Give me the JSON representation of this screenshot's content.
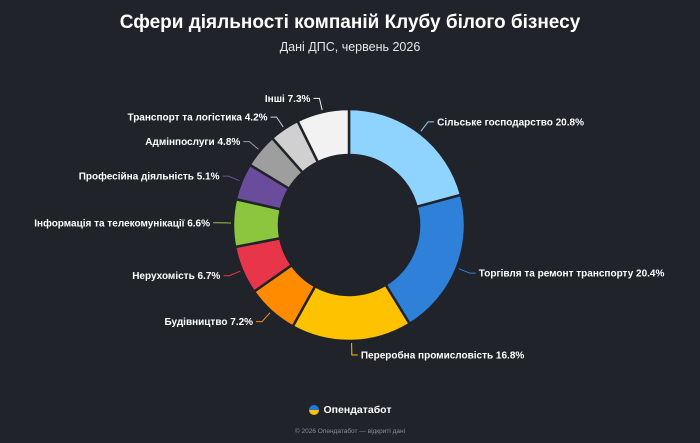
{
  "header": {
    "title": "Сфери діяльності компаній Клубу білого бізнесу",
    "subtitle": "Дані ДПС, червень 2026"
  },
  "chart_data": {
    "type": "pie",
    "variant": "donut",
    "title": "Сфери діяльності компаній Клубу білого бізнесу",
    "subtitle": "Дані ДПС, червень 2026",
    "legend": "none (outside labels with leader lines)",
    "slices": [
      {
        "label": "Сільське господарство 20.8%",
        "value": 20.8,
        "color": "#8fd3ff"
      },
      {
        "label": "Торгівля та ремонт транспорту 20.4%",
        "value": 20.4,
        "color": "#2f80d9"
      },
      {
        "label": "Переробна промисловість 16.8%",
        "value": 16.8,
        "color": "#ffc200"
      },
      {
        "label": "Будівництво 7.2%",
        "value": 7.2,
        "color": "#ff8c00"
      },
      {
        "label": "Нерухомість 6.7%",
        "value": 6.7,
        "color": "#e8354a"
      },
      {
        "label": "Інформація та телекомунікації 6.6%",
        "value": 6.6,
        "color": "#8cc63f"
      },
      {
        "label": "Професійна діяльність 5.1%",
        "value": 5.1,
        "color": "#6a4c9c"
      },
      {
        "label": "Адмінпослуги 4.8%",
        "value": 4.8,
        "color": "#9e9e9e"
      },
      {
        "label": "Транспорт та логістика 4.2%",
        "value": 4.2,
        "color": "#d0d0d0"
      },
      {
        "label": "Інші 7.3%",
        "value": 7.3,
        "color": "#f2f2f2"
      }
    ]
  },
  "footer": {
    "brand": "Опендатабот",
    "brand_icon": "ukraine-flag-icon",
    "copyright": "© 2026 Опендатабот — відкриті дані"
  }
}
